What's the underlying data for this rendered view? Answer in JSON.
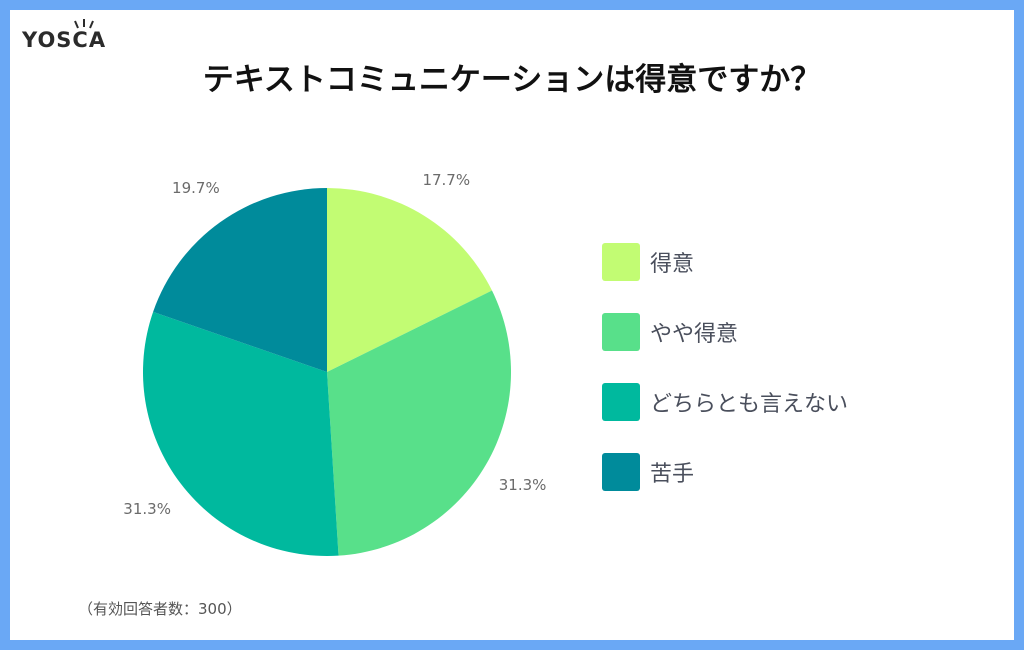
{
  "brand": {
    "logo_text": "YOSCA"
  },
  "footnote": "（有効回答者数：300）",
  "colors": {
    "page_border": "#6aa8f5",
    "background": "#ffffff",
    "label_text": "#6b6b6b"
  },
  "chart_data": {
    "type": "pie",
    "title": "テキストコミュニケーションは得意ですか？",
    "legend_position": "right",
    "slices": [
      {
        "name": "得意",
        "value": 17.7,
        "label": "17.7%",
        "color": "#c2fc73"
      },
      {
        "name": "やや得意",
        "value": 31.3,
        "label": "31.3%",
        "color": "#58e08a"
      },
      {
        "name": "どちらとも言えない",
        "value": 31.3,
        "label": "31.3%",
        "color": "#00b99e"
      },
      {
        "name": "苦手",
        "value": 19.7,
        "label": "19.7%",
        "color": "#008b9b"
      }
    ]
  }
}
